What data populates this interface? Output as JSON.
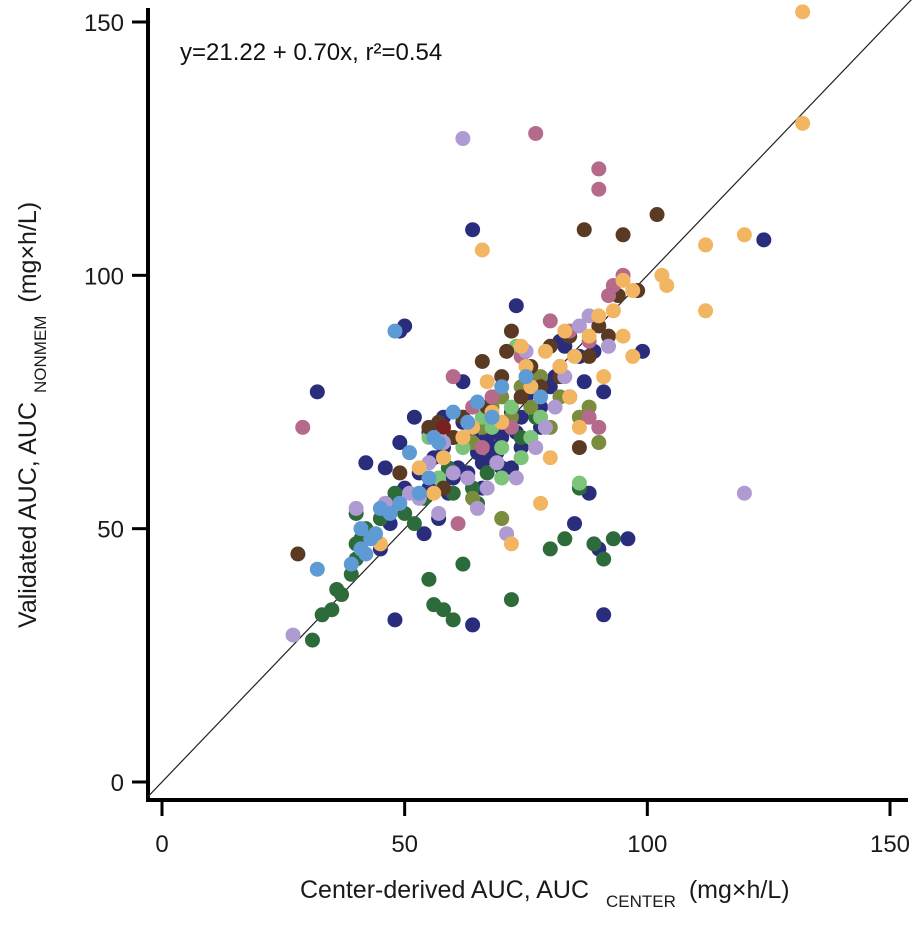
{
  "chart_data": {
    "type": "scatter",
    "annotation": "y=21.22 + 0.70x,  r²=0.54",
    "xlabel": {
      "main": "Center-derived AUC, AUC",
      "sub": "CENTER",
      "unit": "(mg×h/L)"
    },
    "ylabel": {
      "main": "Validated AUC, AUC",
      "sub": "NONMEM",
      "unit": "(mg×h/L)"
    },
    "xlim": [
      0,
      150
    ],
    "ylim": [
      0,
      150
    ],
    "xticks": [
      0,
      50,
      100,
      150
    ],
    "yticks": [
      0,
      50,
      100,
      150
    ],
    "reference_line": {
      "label": "identity line y=x",
      "from": [
        -3,
        -3
      ],
      "to": [
        155,
        155
      ]
    },
    "series": [
      {
        "name": "group-dark-navy",
        "color": "#2a2d7c",
        "points": [
          [
            32,
            77
          ],
          [
            48,
            32
          ],
          [
            49,
            89
          ],
          [
            50,
            90
          ],
          [
            64,
            31
          ],
          [
            64,
            109
          ],
          [
            73,
            94
          ],
          [
            82,
            87
          ],
          [
            84,
            76
          ],
          [
            85,
            51
          ],
          [
            87,
            79
          ],
          [
            88,
            57
          ],
          [
            90,
            46
          ],
          [
            91,
            33
          ],
          [
            91,
            77
          ],
          [
            96,
            48
          ],
          [
            99,
            85
          ],
          [
            124,
            107
          ],
          [
            42,
            63
          ],
          [
            45,
            46
          ],
          [
            47,
            51
          ],
          [
            49,
            67
          ],
          [
            52,
            72
          ],
          [
            53,
            61
          ],
          [
            54,
            49
          ],
          [
            55,
            58
          ],
          [
            56,
            64
          ],
          [
            57,
            52
          ],
          [
            58,
            66
          ],
          [
            59,
            57
          ],
          [
            60,
            60
          ],
          [
            61,
            62
          ],
          [
            62,
            71
          ],
          [
            63,
            61
          ],
          [
            64,
            58
          ],
          [
            65,
            65
          ],
          [
            66,
            63
          ],
          [
            67,
            68
          ],
          [
            68,
            66
          ],
          [
            69,
            65
          ],
          [
            70,
            68
          ],
          [
            71,
            70
          ],
          [
            72,
            73
          ],
          [
            73,
            69
          ],
          [
            74,
            72
          ],
          [
            75,
            76
          ],
          [
            76,
            80
          ],
          [
            78,
            74
          ],
          [
            80,
            78
          ],
          [
            83,
            86
          ],
          [
            86,
            84
          ],
          [
            89,
            85
          ],
          [
            46,
            62
          ],
          [
            50,
            58
          ],
          [
            55,
            69
          ],
          [
            58,
            72
          ],
          [
            62,
            79
          ],
          [
            66,
            58
          ],
          [
            70,
            62
          ],
          [
            74,
            66
          ],
          [
            78,
            70
          ],
          [
            81,
            80
          ],
          [
            64,
            68
          ],
          [
            68,
            64
          ],
          [
            72,
            62
          ]
        ]
      },
      {
        "name": "group-dark-green",
        "color": "#2e6b3a",
        "points": [
          [
            31,
            28
          ],
          [
            33,
            33
          ],
          [
            35,
            34
          ],
          [
            36,
            38
          ],
          [
            37,
            37
          ],
          [
            39,
            41
          ],
          [
            40,
            44
          ],
          [
            40,
            47
          ],
          [
            41,
            48
          ],
          [
            42,
            50
          ],
          [
            45,
            52
          ],
          [
            47,
            55
          ],
          [
            48,
            57
          ],
          [
            50,
            53
          ],
          [
            52,
            51
          ],
          [
            54,
            56
          ],
          [
            55,
            40
          ],
          [
            56,
            35
          ],
          [
            58,
            34
          ],
          [
            59,
            62
          ],
          [
            60,
            32
          ],
          [
            60,
            57
          ],
          [
            62,
            43
          ],
          [
            64,
            58
          ],
          [
            65,
            55
          ],
          [
            67,
            61
          ],
          [
            69,
            63
          ],
          [
            72,
            36
          ],
          [
            74,
            68
          ],
          [
            77,
            72
          ],
          [
            80,
            46
          ],
          [
            83,
            48
          ],
          [
            86,
            58
          ],
          [
            89,
            47
          ],
          [
            91,
            44
          ],
          [
            93,
            48
          ],
          [
            40,
            53
          ]
        ]
      },
      {
        "name": "group-olive",
        "color": "#7a8c3e",
        "points": [
          [
            58,
            64
          ],
          [
            60,
            68
          ],
          [
            62,
            72
          ],
          [
            64,
            67
          ],
          [
            66,
            70
          ],
          [
            68,
            74
          ],
          [
            70,
            76
          ],
          [
            72,
            72
          ],
          [
            74,
            78
          ],
          [
            76,
            74
          ],
          [
            78,
            80
          ],
          [
            80,
            70
          ],
          [
            82,
            76
          ],
          [
            86,
            72
          ],
          [
            88,
            74
          ],
          [
            90,
            67
          ],
          [
            70,
            52
          ],
          [
            64,
            56
          ]
        ]
      },
      {
        "name": "group-light-green",
        "color": "#7cc47a",
        "points": [
          [
            55,
            68
          ],
          [
            57,
            60
          ],
          [
            62,
            66
          ],
          [
            66,
            72
          ],
          [
            68,
            70
          ],
          [
            70,
            66
          ],
          [
            72,
            74
          ],
          [
            74,
            64
          ],
          [
            76,
            68
          ],
          [
            78,
            72
          ],
          [
            86,
            59
          ],
          [
            70,
            60
          ],
          [
            73,
            86
          ]
        ]
      },
      {
        "name": "group-dark-brown",
        "color": "#5a3a22",
        "points": [
          [
            28,
            45
          ],
          [
            49,
            61
          ],
          [
            55,
            70
          ],
          [
            58,
            58
          ],
          [
            60,
            68
          ],
          [
            62,
            72
          ],
          [
            67,
            74
          ],
          [
            70,
            80
          ],
          [
            72,
            89
          ],
          [
            74,
            76
          ],
          [
            76,
            82
          ],
          [
            78,
            78
          ],
          [
            80,
            86
          ],
          [
            82,
            80
          ],
          [
            84,
            88
          ],
          [
            86,
            66
          ],
          [
            87,
            109
          ],
          [
            90,
            90
          ],
          [
            92,
            88
          ],
          [
            94,
            96
          ],
          [
            95,
            108
          ],
          [
            98,
            97
          ],
          [
            102,
            112
          ],
          [
            57,
            71
          ],
          [
            66,
            83
          ],
          [
            71,
            85
          ],
          [
            88,
            84
          ]
        ]
      },
      {
        "name": "group-dark-red",
        "color": "#7a2020",
        "points": [
          [
            58,
            70
          ]
        ]
      },
      {
        "name": "group-mauve",
        "color": "#b56a8c",
        "points": [
          [
            29,
            70
          ],
          [
            60,
            80
          ],
          [
            64,
            74
          ],
          [
            66,
            66
          ],
          [
            72,
            70
          ],
          [
            77,
            128
          ],
          [
            80,
            91
          ],
          [
            84,
            89
          ],
          [
            88,
            87
          ],
          [
            90,
            117
          ],
          [
            90,
            121
          ],
          [
            92,
            96
          ],
          [
            93,
            98
          ],
          [
            95,
            100
          ],
          [
            88,
            72
          ],
          [
            90,
            70
          ],
          [
            61,
            51
          ],
          [
            68,
            76
          ],
          [
            74,
            84
          ],
          [
            82,
            82
          ]
        ]
      },
      {
        "name": "group-lavender",
        "color": "#b09ad2",
        "points": [
          [
            27,
            29
          ],
          [
            40,
            54
          ],
          [
            46,
            55
          ],
          [
            51,
            57
          ],
          [
            53,
            56
          ],
          [
            57,
            53
          ],
          [
            60,
            61
          ],
          [
            62,
            127
          ],
          [
            63,
            60
          ],
          [
            65,
            54
          ],
          [
            67,
            58
          ],
          [
            69,
            63
          ],
          [
            71,
            49
          ],
          [
            73,
            60
          ],
          [
            75,
            85
          ],
          [
            77,
            66
          ],
          [
            79,
            70
          ],
          [
            81,
            74
          ],
          [
            83,
            80
          ],
          [
            88,
            92
          ],
          [
            92,
            86
          ],
          [
            120,
            57
          ],
          [
            55,
            63
          ],
          [
            58,
            67
          ],
          [
            86,
            90
          ]
        ]
      },
      {
        "name": "group-light-orange",
        "color": "#f2b662",
        "points": [
          [
            45,
            47
          ],
          [
            53,
            62
          ],
          [
            56,
            57
          ],
          [
            58,
            64
          ],
          [
            62,
            68
          ],
          [
            66,
            105
          ],
          [
            67,
            79
          ],
          [
            70,
            71
          ],
          [
            72,
            47
          ],
          [
            74,
            86
          ],
          [
            75,
            82
          ],
          [
            78,
            55
          ],
          [
            80,
            64
          ],
          [
            82,
            82
          ],
          [
            84,
            76
          ],
          [
            86,
            70
          ],
          [
            88,
            88
          ],
          [
            90,
            92
          ],
          [
            93,
            93
          ],
          [
            95,
            99
          ],
          [
            97,
            84
          ],
          [
            97,
            97
          ],
          [
            103,
            100
          ],
          [
            104,
            98
          ],
          [
            112,
            93
          ],
          [
            112,
            106
          ],
          [
            120,
            108
          ],
          [
            132,
            130
          ],
          [
            132,
            152
          ],
          [
            64,
            70
          ],
          [
            68,
            73
          ],
          [
            76,
            78
          ],
          [
            79,
            85
          ],
          [
            83,
            89
          ],
          [
            85,
            84
          ],
          [
            91,
            80
          ],
          [
            95,
            88
          ]
        ]
      },
      {
        "name": "group-sky-blue",
        "color": "#5e9ad4",
        "points": [
          [
            32,
            42
          ],
          [
            39,
            43
          ],
          [
            41,
            46
          ],
          [
            42,
            45
          ],
          [
            43,
            48
          ],
          [
            45,
            54
          ],
          [
            47,
            53
          ],
          [
            48,
            89
          ],
          [
            49,
            55
          ],
          [
            51,
            65
          ],
          [
            53,
            57
          ],
          [
            55,
            60
          ],
          [
            57,
            67
          ],
          [
            60,
            73
          ],
          [
            63,
            71
          ],
          [
            65,
            75
          ],
          [
            70,
            78
          ],
          [
            75,
            80
          ],
          [
            78,
            76
          ],
          [
            41,
            50
          ],
          [
            44,
            49
          ],
          [
            56,
            68
          ],
          [
            68,
            72
          ]
        ]
      }
    ]
  }
}
